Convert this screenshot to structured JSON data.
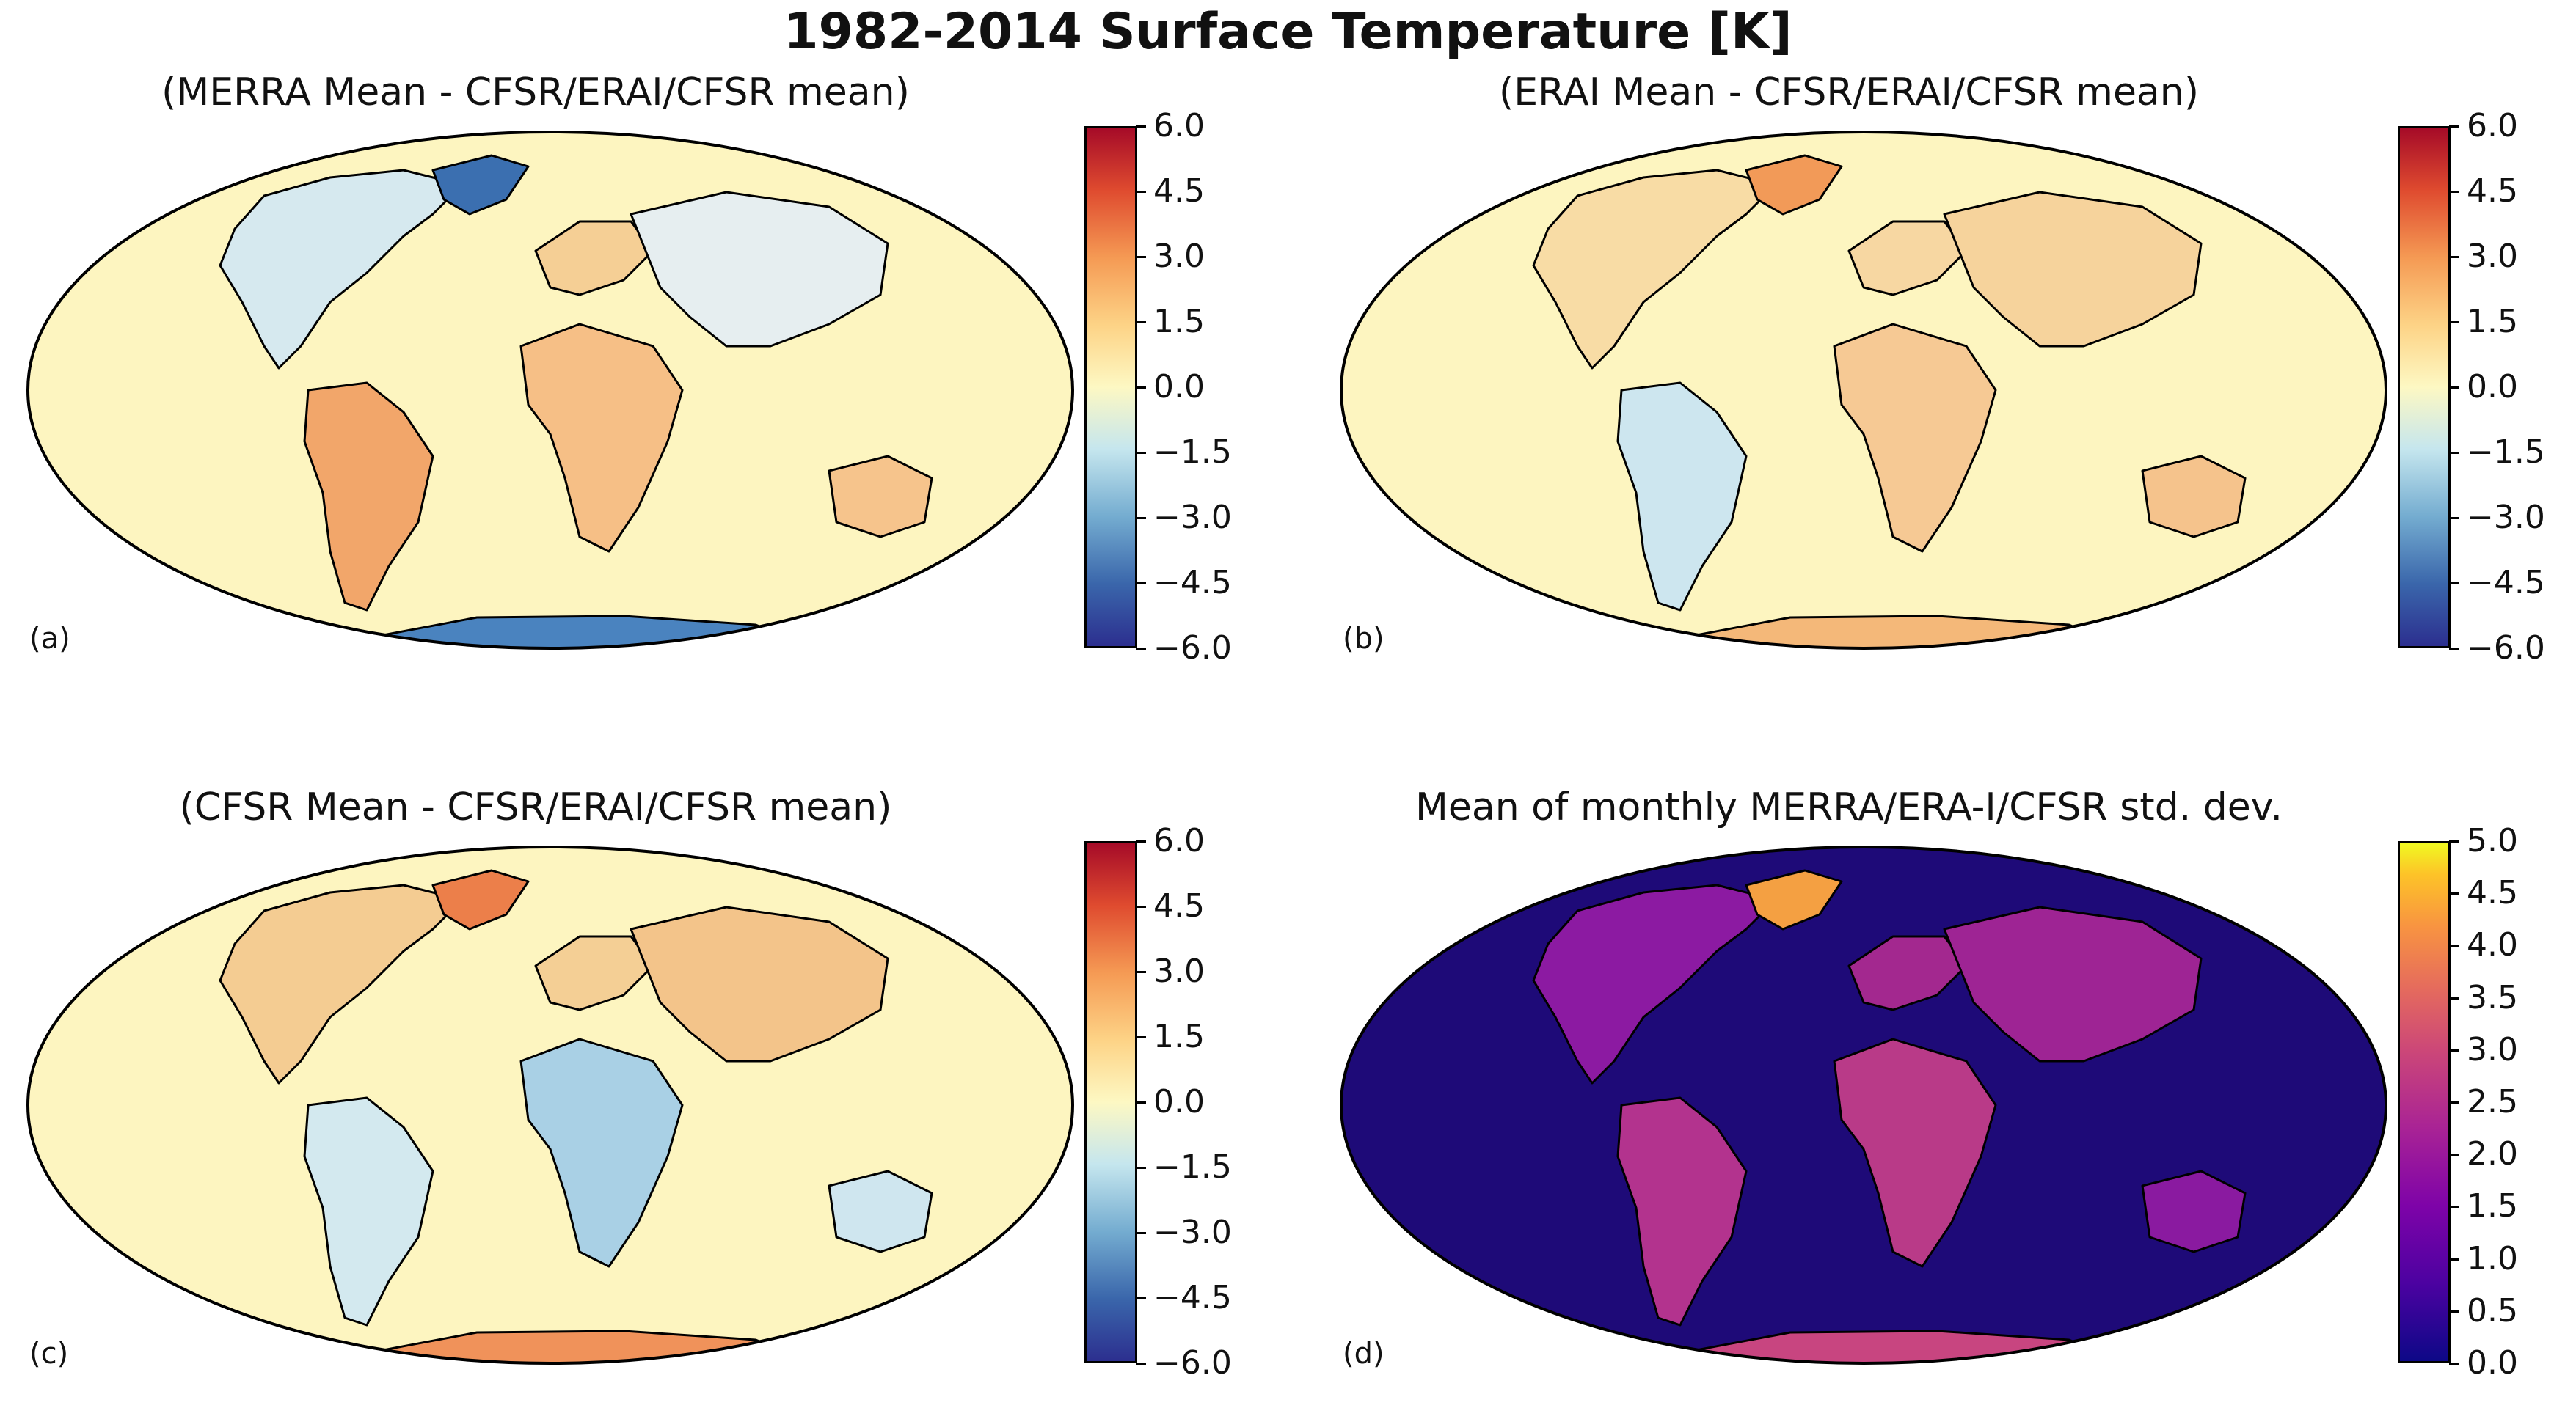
{
  "title": "1982-2014 Surface Temperature  [K]",
  "panels": [
    {
      "id": "a",
      "letter": "(a)",
      "title": "(MERRA Mean - CFSR/ERAI/CFSR mean)",
      "colormap": "diverging-blue-yellow-red",
      "ticks": [
        "6.0",
        "4.5",
        "3.0",
        "1.5",
        "0.0",
        "−1.5",
        "−3.0",
        "−4.5",
        "−6.0"
      ]
    },
    {
      "id": "b",
      "letter": "(b)",
      "title": "(ERAI Mean - CFSR/ERAI/CFSR mean)",
      "colormap": "diverging-blue-yellow-red",
      "ticks": [
        "6.0",
        "4.5",
        "3.0",
        "1.5",
        "0.0",
        "−1.5",
        "−3.0",
        "−4.5",
        "−6.0"
      ]
    },
    {
      "id": "c",
      "letter": "(c)",
      "title": "(CFSR Mean - CFSR/ERAI/CFSR mean)",
      "colormap": "diverging-blue-yellow-red",
      "ticks": [
        "6.0",
        "4.5",
        "3.0",
        "1.5",
        "0.0",
        "−1.5",
        "−3.0",
        "−4.5",
        "−6.0"
      ]
    },
    {
      "id": "d",
      "letter": "(d)",
      "title": "Mean of monthly MERRA/ERA-I/CFSR std. dev.",
      "colormap": "plasma",
      "ticks": [
        "5.0",
        "4.5",
        "4.0",
        "3.5",
        "3.0",
        "2.5",
        "2.0",
        "1.5",
        "1.0",
        "0.5",
        "0.0"
      ]
    }
  ],
  "colors": {
    "ocean_diverging": "#fdf5c0",
    "ocean_plasma": "#1e0a78",
    "coast": "#000000"
  }
}
